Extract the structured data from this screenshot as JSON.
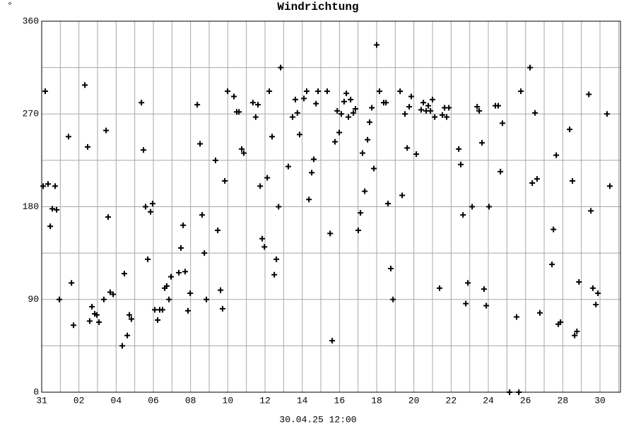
{
  "chart_data": {
    "type": "scatter",
    "title": "Windrichtung",
    "y_label": "°",
    "x_label": "30.04.25 12:00",
    "color": "#000000",
    "grid": true,
    "xlim": [
      0,
      31.1
    ],
    "ylim": [
      0,
      360
    ],
    "xticks": [
      {
        "value": 0,
        "label": "31"
      },
      {
        "value": 2,
        "label": "02"
      },
      {
        "value": 4,
        "label": "04"
      },
      {
        "value": 6,
        "label": "06"
      },
      {
        "value": 8,
        "label": "08"
      },
      {
        "value": 10,
        "label": "10"
      },
      {
        "value": 12,
        "label": "12"
      },
      {
        "value": 14,
        "label": "14"
      },
      {
        "value": 16,
        "label": "16"
      },
      {
        "value": 18,
        "label": "18"
      },
      {
        "value": 20,
        "label": "20"
      },
      {
        "value": 22,
        "label": "22"
      },
      {
        "value": 24,
        "label": "24"
      },
      {
        "value": 26,
        "label": "26"
      },
      {
        "value": 28,
        "label": "28"
      },
      {
        "value": 30,
        "label": "30"
      }
    ],
    "xminor": [
      1,
      3,
      5,
      7,
      9,
      11,
      13,
      15,
      17,
      19,
      21,
      23,
      25,
      27,
      29,
      31
    ],
    "yticks": [
      0,
      90,
      180,
      270,
      360
    ],
    "yminor": [
      45,
      135,
      225,
      315
    ],
    "x": [
      0.08,
      0.19,
      0.34,
      0.46,
      0.57,
      0.72,
      0.8,
      0.95,
      1.44,
      1.6,
      1.71,
      2.32,
      2.47,
      2.58,
      2.7,
      2.85,
      2.96,
      3.08,
      3.34,
      3.46,
      3.57,
      3.68,
      3.84,
      4.33,
      4.44,
      4.6,
      4.71,
      4.82,
      5.36,
      5.47,
      5.58,
      5.7,
      5.85,
      5.96,
      6.08,
      6.23,
      6.34,
      6.49,
      6.61,
      6.72,
      6.84,
      6.95,
      7.37,
      7.48,
      7.6,
      7.71,
      7.86,
      7.98,
      8.36,
      8.51,
      8.62,
      8.74,
      8.85,
      9.34,
      9.46,
      9.61,
      9.72,
      9.84,
      9.99,
      10.33,
      10.48,
      10.6,
      10.75,
      10.86,
      11.35,
      11.5,
      11.62,
      11.74,
      11.85,
      11.97,
      12.12,
      12.23,
      12.38,
      12.5,
      12.61,
      12.73,
      12.84,
      13.25,
      13.48,
      13.63,
      13.74,
      13.86,
      14.09,
      14.24,
      14.36,
      14.51,
      14.62,
      14.74,
      14.85,
      15.34,
      15.5,
      15.61,
      15.76,
      15.88,
      15.99,
      16.1,
      16.25,
      16.37,
      16.48,
      16.6,
      16.75,
      16.86,
      17.01,
      17.13,
      17.24,
      17.36,
      17.51,
      17.62,
      17.74,
      17.85,
      18.0,
      18.15,
      18.38,
      18.5,
      18.61,
      18.76,
      18.88,
      19.26,
      19.37,
      19.52,
      19.64,
      19.75,
      19.86,
      20.13,
      20.39,
      20.51,
      20.66,
      20.77,
      20.89,
      21.0,
      21.12,
      21.38,
      21.53,
      21.65,
      21.76,
      21.88,
      22.41,
      22.52,
      22.64,
      22.79,
      22.9,
      23.13,
      23.4,
      23.51,
      23.66,
      23.77,
      23.89,
      24.04,
      24.38,
      24.53,
      24.65,
      24.76,
      25.14,
      25.52,
      25.64,
      25.75,
      26.24,
      26.36,
      26.51,
      26.62,
      26.77,
      27.42,
      27.5,
      27.65,
      27.76,
      27.88,
      28.37,
      28.52,
      28.64,
      28.76,
      28.87,
      29.4,
      29.51,
      29.62,
      29.78,
      29.89,
      30.38,
      30.53
    ],
    "values": [
      200,
      292,
      202,
      161,
      178,
      200,
      177,
      90,
      248,
      106,
      65,
      298,
      238,
      69,
      83,
      76,
      75,
      68,
      90,
      254,
      170,
      97,
      95,
      45,
      115,
      55,
      75,
      71,
      281,
      235,
      180,
      129,
      175,
      183,
      80,
      70,
      80,
      80,
      101,
      103,
      90,
      112,
      116,
      140,
      162,
      117,
      79,
      96,
      279,
      241,
      172,
      135,
      90,
      225,
      157,
      99,
      81,
      205,
      292,
      287,
      272,
      272,
      236,
      232,
      281,
      267,
      279,
      200,
      149,
      141,
      208,
      292,
      248,
      114,
      129,
      180,
      315,
      219,
      267,
      284,
      271,
      250,
      285,
      292,
      187,
      213,
      226,
      280,
      292,
      292,
      154,
      50,
      243,
      273,
      252,
      270,
      282,
      290,
      267,
      284,
      271,
      275,
      157,
      174,
      232,
      195,
      245,
      262,
      276,
      217,
      337,
      292,
      281,
      281,
      183,
      120,
      90,
      292,
      191,
      270,
      237,
      277,
      287,
      231,
      274,
      281,
      273,
      278,
      273,
      284,
      267,
      101,
      269,
      276,
      267,
      276,
      236,
      221,
      172,
      86,
      106,
      180,
      277,
      273,
      242,
      100,
      84,
      180,
      278,
      278,
      214,
      261,
      0,
      73,
      0,
      292,
      315,
      203,
      271,
      207,
      77,
      124,
      158,
      230,
      66,
      68,
      255,
      205,
      55,
      59,
      107,
      289,
      176,
      101,
      85,
      96,
      270,
      200
    ]
  }
}
